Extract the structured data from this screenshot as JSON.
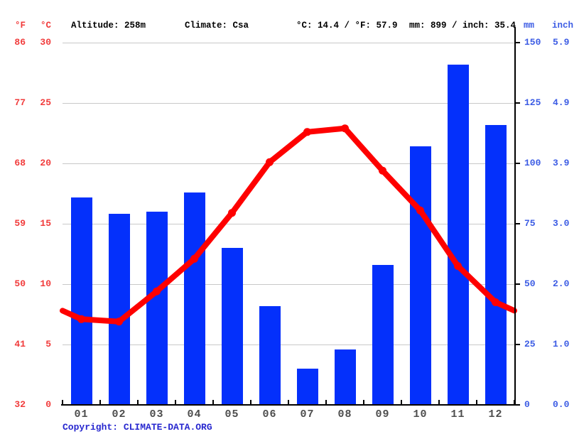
{
  "header": {
    "left_unit_f": "°F",
    "left_unit_c": "°C",
    "altitude": "Altitude: 258m",
    "climate": "Climate: Csa",
    "temp_summary": "°C: 14.4 / °F: 57.9",
    "precip_summary": "mm: 899 / inch: 35.4",
    "right_unit_mm": "mm",
    "right_unit_inch": "inch"
  },
  "axes": {
    "fahrenheit_ticks": [
      "86",
      "77",
      "68",
      "59",
      "50",
      "41",
      "32"
    ],
    "celsius_ticks": [
      "30",
      "25",
      "20",
      "15",
      "10",
      "5",
      "0"
    ],
    "mm_ticks": [
      "150",
      "125",
      "100",
      "75",
      "50",
      "25",
      "0"
    ],
    "inch_ticks": [
      "5.9",
      "4.9",
      "3.9",
      "3.0",
      "2.0",
      "1.0",
      "0.0"
    ]
  },
  "chart_data": {
    "type": "bar+line",
    "title": "Climate graph (climograph)",
    "categories": [
      "01",
      "02",
      "03",
      "04",
      "05",
      "06",
      "07",
      "08",
      "09",
      "10",
      "11",
      "12"
    ],
    "series": [
      {
        "name": "precipitation_mm",
        "type": "bar",
        "values": [
          86,
          79,
          80,
          88,
          65,
          41,
          15,
          23,
          58,
          107,
          141,
          116
        ],
        "total_mm": 899,
        "total_inch": 35.4
      },
      {
        "name": "temperature_c",
        "type": "line",
        "values": [
          7.1,
          6.9,
          9.4,
          12.1,
          15.9,
          20.1,
          22.6,
          22.9,
          19.4,
          16.1,
          11.5,
          8.5
        ],
        "edge_values": {
          "left": 7.8,
          "right": 7.8
        },
        "mean_c": 14.4,
        "mean_f": 57.9
      }
    ],
    "ylim_temp_c": [
      0,
      30
    ],
    "ylim_precip_mm": [
      0,
      150
    ],
    "grid": true,
    "legend_position": "none"
  },
  "footer": {
    "copyright_label": "Copyright:",
    "copyright_link": "CLIMATE-DATA.ORG"
  },
  "colors": {
    "bar_blue": "#0430fb",
    "line_red": "#fe0000",
    "temp_label_red": "#f13b3b",
    "precip_label_blue": "#3c5ce4",
    "grid_gray": "#c8c8c8",
    "axis_black": "#000000",
    "month_gray": "#4d4d4d",
    "copyright_blue": "#2727cf"
  }
}
